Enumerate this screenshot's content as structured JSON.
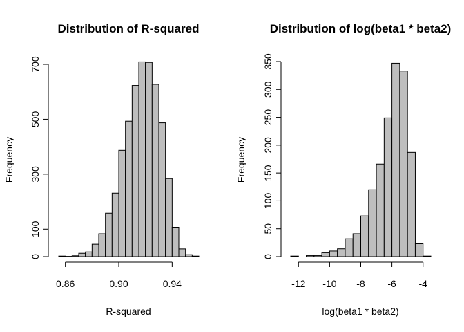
{
  "colors": {
    "bar_fill": "#bebebe",
    "bar_stroke": "#000000",
    "background": "#ffffff"
  },
  "chart_data": [
    {
      "type": "bar",
      "title": "Distribution of R-squared",
      "xlabel": "R-squared",
      "ylabel": "Frequency",
      "bin_edges": [
        0.855,
        0.86,
        0.865,
        0.87,
        0.875,
        0.88,
        0.885,
        0.89,
        0.895,
        0.9,
        0.905,
        0.91,
        0.915,
        0.92,
        0.925,
        0.93,
        0.935,
        0.94,
        0.945,
        0.95,
        0.955,
        0.96
      ],
      "values": [
        2,
        1,
        3,
        12,
        17,
        45,
        83,
        158,
        231,
        387,
        493,
        623,
        709,
        707,
        627,
        487,
        284,
        107,
        28,
        7,
        2
      ],
      "xlim": [
        0.855,
        0.96
      ],
      "ylim": [
        0,
        700
      ],
      "xticks": [
        0.86,
        0.9,
        0.94
      ],
      "xtick_labels": [
        "0.86",
        "0.90",
        "0.94"
      ],
      "yticks": [
        0,
        100,
        300,
        500,
        700
      ],
      "ytick_labels": [
        "0",
        "100",
        "300",
        "500",
        "700"
      ],
      "grid": false
    },
    {
      "type": "bar",
      "title": "Distribution of log(beta1 * beta2)",
      "xlabel": "log(beta1 * beta2)",
      "ylabel": "Frequency",
      "bin_edges": [
        -12.5,
        -12,
        -11.5,
        -11,
        -10.5,
        -10,
        -9.5,
        -9,
        -8.5,
        -8,
        -7.5,
        -7,
        -6.5,
        -6,
        -5.5,
        -5,
        -4.5,
        -4,
        -3.5
      ],
      "values": [
        1,
        0,
        2,
        2,
        7,
        10,
        14,
        32,
        41,
        73,
        120,
        166,
        249,
        347,
        333,
        187,
        23,
        1
      ],
      "xlim": [
        -12.5,
        -3.5
      ],
      "ylim": [
        0,
        350
      ],
      "xticks": [
        -12,
        -10,
        -8,
        -6,
        -4
      ],
      "xtick_labels": [
        "-12",
        "-10",
        "-8",
        "-6",
        "-4"
      ],
      "yticks": [
        0,
        50,
        100,
        150,
        200,
        250,
        300,
        350
      ],
      "ytick_labels": [
        "0",
        "50",
        "100",
        "150",
        "200",
        "250",
        "300",
        "350"
      ],
      "grid": false
    }
  ]
}
